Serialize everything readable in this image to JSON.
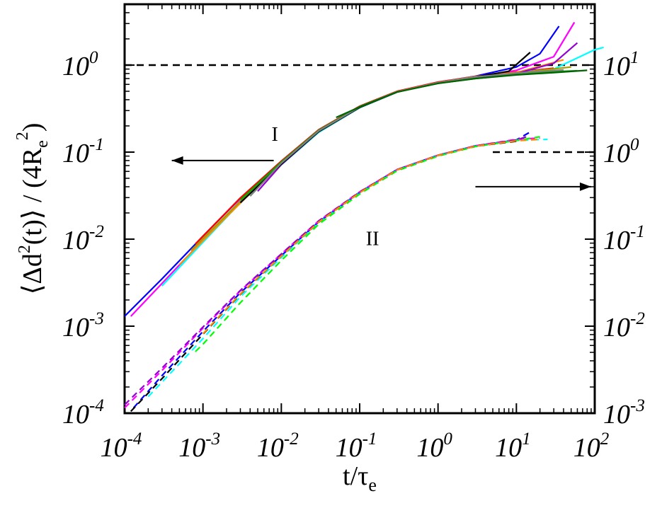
{
  "chart_data": {
    "type": "line",
    "xlabel": {
      "main": "t/τ",
      "sub": "e"
    },
    "ylabel": {
      "part1": "⟨Δd",
      "sup1": "2",
      "part2": "(t)⟩ / (4R",
      "sub2": "e",
      "sup2": "2",
      "part3": ")"
    },
    "xscale": "log",
    "yscale": "log",
    "xlim": [
      0.0001,
      100
    ],
    "ylim_left": [
      0.0001,
      5
    ],
    "ylim_right": [
      0.001,
      50
    ],
    "x_ticks": [
      {
        "value": 0.0001,
        "base": "10",
        "exp": "-4"
      },
      {
        "value": 0.001,
        "base": "10",
        "exp": "-3"
      },
      {
        "value": 0.01,
        "base": "10",
        "exp": "-2"
      },
      {
        "value": 0.1,
        "base": "10",
        "exp": "-1"
      },
      {
        "value": 1,
        "base": "10",
        "exp": "0"
      },
      {
        "value": 10,
        "base": "10",
        "exp": "1"
      },
      {
        "value": 100,
        "base": "10",
        "exp": "2"
      }
    ],
    "y_left_ticks": [
      {
        "value": 0.0001,
        "base": "10",
        "exp": "-4"
      },
      {
        "value": 0.001,
        "base": "10",
        "exp": "-3"
      },
      {
        "value": 0.01,
        "base": "10",
        "exp": "-2"
      },
      {
        "value": 0.1,
        "base": "10",
        "exp": "-1"
      },
      {
        "value": 1,
        "base": "10",
        "exp": "0"
      }
    ],
    "y_right_ticks": [
      {
        "value": 0.001,
        "base": "10",
        "exp": "-3"
      },
      {
        "value": 0.01,
        "base": "10",
        "exp": "-2"
      },
      {
        "value": 0.1,
        "base": "10",
        "exp": "-1"
      },
      {
        "value": 1,
        "base": "10",
        "exp": "0"
      },
      {
        "value": 10,
        "base": "10",
        "exp": "1"
      }
    ],
    "reference_lines": [
      {
        "axis": "left",
        "y": 1,
        "x_from": 0.0001,
        "x_to": 100,
        "style": "dashed"
      },
      {
        "axis": "right",
        "y": 1,
        "x_from": 5,
        "x_to": 100,
        "style": "dashed"
      }
    ],
    "annotations": [
      {
        "text": "I",
        "x": 0.0075,
        "y_left": 0.135
      },
      {
        "text": "II",
        "x": 0.12,
        "y_left": 0.0085
      }
    ],
    "arrows": [
      {
        "direction": "left",
        "axis": "left",
        "y": 0.08,
        "x_from": 0.008,
        "x_to": 0.0004
      },
      {
        "direction": "right",
        "axis": "left",
        "y": 0.04,
        "x_from": 3,
        "x_to": 90
      }
    ],
    "group_I_axis": "left",
    "group_I_series": [
      {
        "color": "#0000ff",
        "x": [
          0.0001,
          0.0003,
          0.001,
          0.003,
          0.01,
          0.03,
          0.1,
          0.3,
          1,
          3,
          10,
          20,
          35
        ],
        "y": [
          0.0013,
          0.0035,
          0.0108,
          0.0295,
          0.0768,
          0.176,
          0.331,
          0.495,
          0.635,
          0.745,
          0.95,
          1.35,
          2.8
        ]
      },
      {
        "color": "#ff00ff",
        "x": [
          0.00012,
          0.0003,
          0.001,
          0.003,
          0.01,
          0.03,
          0.1,
          0.3,
          1,
          3,
          10,
          30,
          55
        ],
        "y": [
          0.0013,
          0.0031,
          0.0098,
          0.0276,
          0.0738,
          0.172,
          0.326,
          0.491,
          0.628,
          0.735,
          0.87,
          1.25,
          3.1
        ]
      },
      {
        "color": "#ff0000",
        "x": [
          0.0008,
          0.003,
          0.01,
          0.03,
          0.1,
          0.3,
          1,
          3,
          10,
          30
        ],
        "y": [
          0.0088,
          0.0298,
          0.0788,
          0.181,
          0.337,
          0.5,
          0.638,
          0.74,
          0.83,
          0.92
        ]
      },
      {
        "color": "#00ffff",
        "x": [
          0.0003,
          0.001,
          0.003,
          0.01,
          0.03,
          0.1,
          0.3,
          1,
          3,
          10,
          30,
          100,
          130
        ],
        "y": [
          0.0029,
          0.0092,
          0.0262,
          0.0712,
          0.169,
          0.324,
          0.489,
          0.626,
          0.73,
          0.82,
          0.9,
          1.5,
          1.6
        ]
      },
      {
        "color": "#ff8c00",
        "x": [
          0.0005,
          0.002,
          0.01,
          0.03,
          0.1,
          0.3,
          1,
          3,
          10,
          40
        ],
        "y": [
          0.0051,
          0.0181,
          0.0758,
          0.176,
          0.33,
          0.494,
          0.63,
          0.74,
          0.82,
          1.15
        ]
      },
      {
        "color": "#a0a000",
        "x": [
          0.0007,
          0.003,
          0.01,
          0.03,
          0.1,
          0.3,
          1,
          3,
          10,
          50
        ],
        "y": [
          0.0074,
          0.0272,
          0.0748,
          0.175,
          0.329,
          0.493,
          0.628,
          0.73,
          0.81,
          0.95
        ]
      },
      {
        "color": "#9400d3",
        "x": [
          0.005,
          0.01,
          0.03,
          0.1,
          0.3,
          1,
          3,
          10,
          30,
          60
        ],
        "y": [
          0.0355,
          0.0718,
          0.172,
          0.327,
          0.49,
          0.627,
          0.73,
          0.8,
          1.05,
          1.8
        ]
      },
      {
        "color": "#000000",
        "x": [
          0.003,
          0.01,
          0.03,
          0.1,
          0.3,
          1,
          3,
          8,
          15
        ],
        "y": [
          0.0262,
          0.0728,
          0.172,
          0.326,
          0.49,
          0.626,
          0.73,
          0.85,
          1.4
        ]
      },
      {
        "color": "#00aa00",
        "x": [
          0.003,
          0.01,
          0.03,
          0.1,
          0.3,
          1,
          3,
          10,
          30,
          60
        ],
        "y": [
          0.0282,
          0.0768,
          0.178,
          0.333,
          0.493,
          0.618,
          0.7,
          0.78,
          0.84,
          0.86
        ]
      },
      {
        "color": "#808080",
        "x": [
          0.004,
          0.01,
          0.03,
          0.1,
          0.3,
          1,
          3,
          10,
          40
        ],
        "y": [
          0.0312,
          0.0748,
          0.175,
          0.33,
          0.493,
          0.628,
          0.73,
          0.81,
          0.88
        ]
      },
      {
        "color": "#006400",
        "x": [
          0.05,
          0.1,
          0.3,
          1,
          3,
          10,
          30,
          80
        ],
        "y": [
          0.25,
          0.33,
          0.49,
          0.615,
          0.7,
          0.77,
          0.82,
          0.87
        ]
      }
    ],
    "group_II_axis": "right",
    "group_II_series": [
      {
        "color": "#0000ff",
        "x": [
          0.00013,
          0.0003,
          0.001,
          0.003,
          0.01,
          0.03,
          0.1,
          0.3,
          1,
          3,
          10,
          15
        ],
        "y": [
          0.00115,
          0.0027,
          0.0087,
          0.0242,
          0.0646,
          0.158,
          0.345,
          0.63,
          0.92,
          1.18,
          1.38,
          1.7
        ]
      },
      {
        "color": "#ff00ff",
        "x": [
          0.0001,
          0.0003,
          0.001,
          0.003,
          0.01,
          0.03,
          0.1,
          0.3,
          1,
          3,
          10,
          20
        ],
        "y": [
          0.00115,
          0.0031,
          0.0095,
          0.0255,
          0.0676,
          0.162,
          0.35,
          0.63,
          0.92,
          1.18,
          1.4,
          1.45
        ]
      },
      {
        "color": "#00ffff",
        "x": [
          0.0002,
          0.0005,
          0.001,
          0.003,
          0.01,
          0.03,
          0.1,
          0.3,
          1,
          3,
          10,
          25
        ],
        "y": [
          0.00155,
          0.0037,
          0.0072,
          0.0218,
          0.0615,
          0.155,
          0.34,
          0.62,
          0.91,
          1.17,
          1.37,
          1.4
        ]
      },
      {
        "color": "#00ff00",
        "x": [
          0.0008,
          0.001,
          0.003,
          0.01,
          0.03,
          0.1,
          0.3,
          1,
          3,
          10,
          20
        ],
        "y": [
          0.0051,
          0.0062,
          0.0186,
          0.0568,
          0.148,
          0.33,
          0.61,
          0.9,
          1.16,
          1.36,
          1.5
        ]
      },
      {
        "color": "#9400d3",
        "x": [
          0.0001,
          0.0003,
          0.001,
          0.003,
          0.01,
          0.03,
          0.1,
          0.3,
          1,
          3,
          10,
          15
        ],
        "y": [
          0.00125,
          0.0033,
          0.0098,
          0.0258,
          0.0676,
          0.162,
          0.348,
          0.63,
          0.92,
          1.18,
          1.38,
          1.55
        ]
      },
      {
        "color": "#000000",
        "x": [
          0.00012,
          0.0003,
          0.001,
          0.003,
          0.01,
          0.03,
          0.1,
          0.3,
          1,
          3,
          10
        ],
        "y": [
          0.00105,
          0.0025,
          0.0081,
          0.0232,
          0.0638,
          0.157,
          0.343,
          0.625,
          0.915,
          1.17,
          1.33
        ]
      },
      {
        "color": "#ff8c00",
        "x": [
          0.001,
          0.003,
          0.01,
          0.03,
          0.1,
          0.3,
          1,
          3,
          10,
          20
        ],
        "y": [
          0.0082,
          0.0235,
          0.0638,
          0.157,
          0.342,
          0.625,
          0.915,
          1.17,
          1.35,
          1.4
        ]
      }
    ]
  }
}
